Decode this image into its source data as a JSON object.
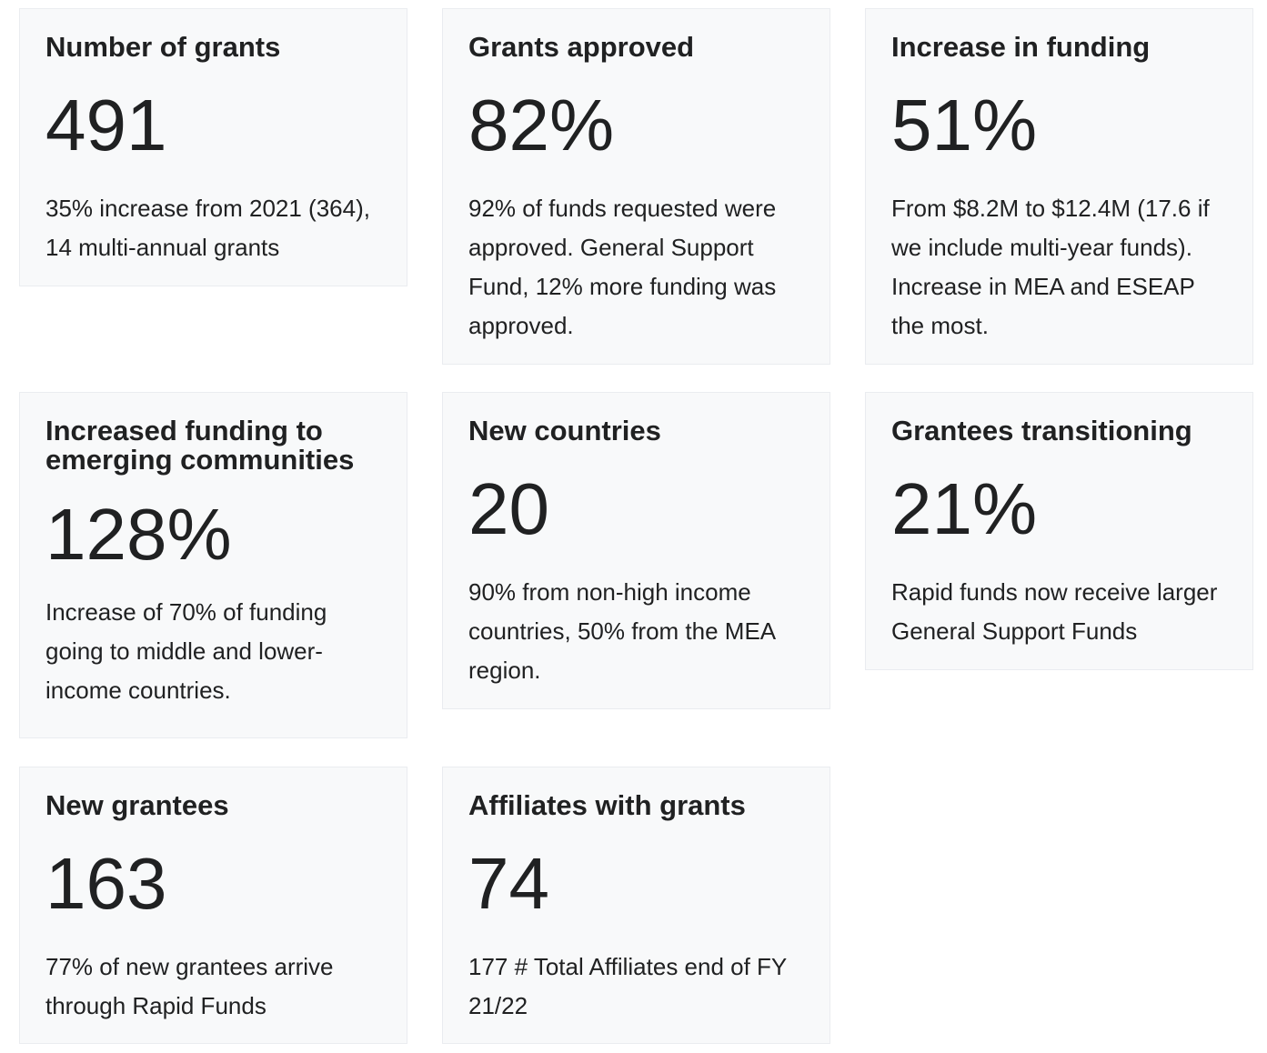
{
  "cards": [
    {
      "title": "Number of grants",
      "stat": "491",
      "description": "35% increase from 2021 (364), 14 multi-annual grants"
    },
    {
      "title": "Grants approved",
      "stat": "82%",
      "description": "92% of funds requested were approved. General Support Fund, 12% more funding was approved."
    },
    {
      "title": "Increase in funding",
      "stat": "51%",
      "description": "From $8.2M to $12.4M (17.6 if we include multi-year funds). Increase in MEA and ESEAP the most."
    },
    {
      "title": "Increased funding to emerging communities",
      "stat": "128%",
      "description": "Increase of 70% of funding going to middle and lower-income countries."
    },
    {
      "title": "New countries",
      "stat": "20",
      "description": "90% from non-high income countries, 50% from the MEA region."
    },
    {
      "title": "Grantees transitioning",
      "stat": "21%",
      "description": "Rapid funds now receive larger General Support Funds"
    },
    {
      "title": "New grantees",
      "stat": "163",
      "description": "77% of new grantees arrive through Rapid Funds"
    },
    {
      "title": "Affiliates with grants",
      "stat": "74",
      "description": "177 # Total Affiliates end of FY 21/22"
    }
  ]
}
